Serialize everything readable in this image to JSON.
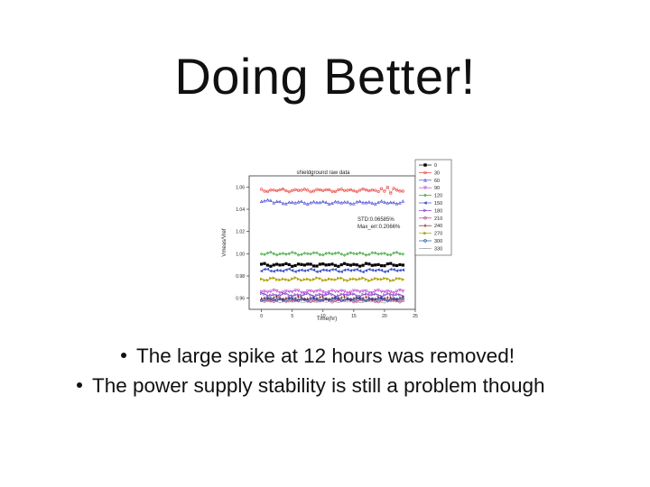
{
  "slide": {
    "title": "Doing Better!",
    "bullets": [
      "The large spike at 12 hours was removed!",
      "The power supply stability is still a problem though"
    ]
  },
  "chart_data": {
    "type": "line",
    "title": "shieldground raw data",
    "xlabel": "Time(hr)",
    "ylabel": "Vmeas/Vref",
    "xlim": [
      -2,
      25
    ],
    "ylim": [
      0.95,
      1.07
    ],
    "xticks": [
      "0",
      "5",
      "10",
      "15",
      "20",
      "25"
    ],
    "yticks": [
      "0.96",
      "0.98",
      "1.00",
      "1.02",
      "1.04",
      "1.06"
    ],
    "annotations": [
      "STD:0.06585%",
      "Max_err:0.2066%"
    ],
    "legend_position": "top-right-outside",
    "series": [
      {
        "name": "0",
        "color": "#000000",
        "marker": "square",
        "level": 0.99
      },
      {
        "name": "30",
        "color": "#e8413c",
        "marker": "circle",
        "level": 1.057
      },
      {
        "name": "60",
        "color": "#4a4ad6",
        "marker": "triangle",
        "level": 1.046
      },
      {
        "name": "90",
        "color": "#c03fd0",
        "marker": "triangle-down",
        "level": 0.966
      },
      {
        "name": "120",
        "color": "#2ca02c",
        "marker": "diamond",
        "level": 1.0
      },
      {
        "name": "150",
        "color": "#3a50c8",
        "marker": "triangle-left",
        "level": 0.985
      },
      {
        "name": "180",
        "color": "#7a3fd0",
        "marker": "triangle-right",
        "level": 0.963
      },
      {
        "name": "210",
        "color": "#b03a8a",
        "marker": "hexagon",
        "level": 0.958
      },
      {
        "name": "240",
        "color": "#8b1a1a",
        "marker": "star",
        "level": 0.96
      },
      {
        "name": "270",
        "color": "#b0a000",
        "marker": "pentagon",
        "level": 0.977
      },
      {
        "name": "300",
        "color": "#1f4fa0",
        "marker": "circle",
        "level": 0.959
      },
      {
        "name": "330",
        "color": "#9a9a9a",
        "marker": "none",
        "level": 0.957
      }
    ]
  }
}
